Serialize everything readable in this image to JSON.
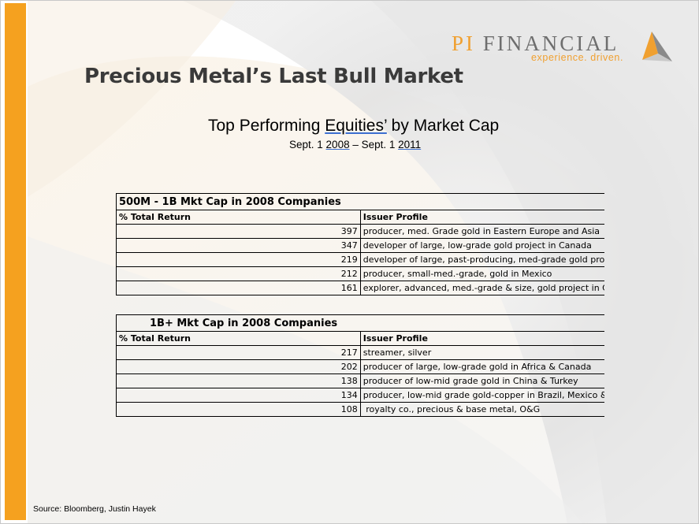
{
  "logo": {
    "pi": "PI",
    "name": "FINANCIAL",
    "tagline": "experience. driven."
  },
  "title": "Precious Metal’s Last Bull Market",
  "subtitle": {
    "pre": "Top Performing ",
    "underlined": "Equities’",
    "post": " by Market Cap"
  },
  "daterange": {
    "a": "Sept. 1 ",
    "b": "2008",
    "c": " – Sept. 1 ",
    "d": "2011"
  },
  "table1": {
    "title": "500M - 1B Mkt Cap in 2008 Companies",
    "col_return": "% Total Return",
    "col_profile": "Issuer Profile",
    "rows": [
      {
        "ret": "397",
        "profile": "producer, med. Grade gold in Eastern Europe and Asia"
      },
      {
        "ret": "347",
        "profile": "developer of large, low-grade gold project in Canada"
      },
      {
        "ret": "219",
        "profile": "developer of large, past-producing, med-grade gold project in Romania"
      },
      {
        "ret": "212",
        "profile": "producer, small-med.-grade, gold in Mexico"
      },
      {
        "ret": "161",
        "profile": "explorer, advanced, med.-grade & size, gold project in Canada"
      }
    ]
  },
  "table2": {
    "title": "1B+ Mkt Cap in 2008 Companies",
    "col_return": "% Total Return",
    "col_profile": "Issuer Profile",
    "rows": [
      {
        "ret": "217",
        "profile": "streamer, silver"
      },
      {
        "ret": "202",
        "profile": "producer of large, low-grade gold in Africa & Canada"
      },
      {
        "ret": "138",
        "profile": "producer of low-mid grade gold in China & Turkey"
      },
      {
        "ret": "134",
        "profile": "producer, low-mid grade gold-copper in Brazil, Mexico & Australia"
      },
      {
        "ret": "108",
        "profile": " royalty co., precious & base metal, O&G"
      }
    ]
  },
  "source": "Source: Bloomberg, Justin Hayek",
  "colors": {
    "accent_orange": "#f5a11f",
    "logo_gray": "#6e6e6e",
    "title_gray": "#3a3a3a"
  }
}
